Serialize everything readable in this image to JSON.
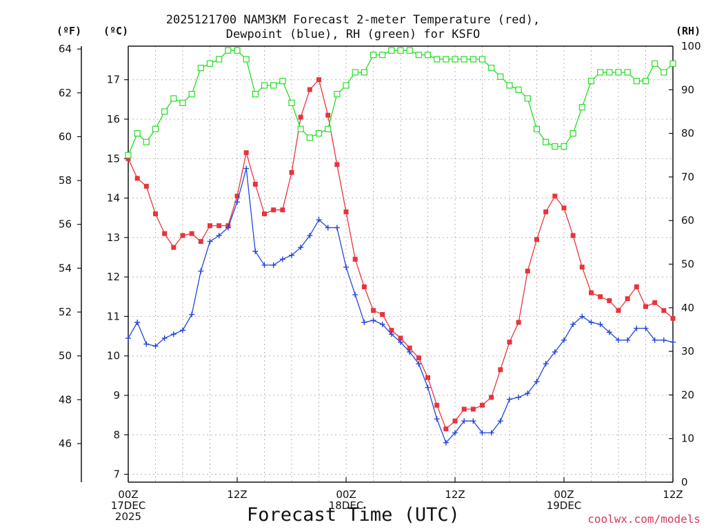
{
  "title_line1": "2025121700 NAM3KM Forecast 2-meter Temperature (red),",
  "title_line2": "Dewpoint (blue), RH (green) for KSFO",
  "units": {
    "f": "(ºF)",
    "c": "(ºC)",
    "rh": "(RH)"
  },
  "x_axis_label": "Forecast Time (UTC)",
  "credit": "coolwx.com/models",
  "colors": {
    "temp": "#e8343c",
    "dew": "#2244dd",
    "rh": "#22dd22",
    "grid": "#b4b4b4"
  },
  "chart_data": {
    "type": "line",
    "title": "2025121700 NAM3KM Forecast 2-meter Temperature (red), Dewpoint (blue), RH (green) for KSFO",
    "xlabel": "Forecast Time (UTC)",
    "x_unit": "forecast hour",
    "xlim": [
      0,
      60
    ],
    "x_ticks": [
      {
        "hour": 0,
        "lines": [
          "00Z",
          "17DEC",
          "2025"
        ]
      },
      {
        "hour": 12,
        "lines": [
          "12Z"
        ]
      },
      {
        "hour": 24,
        "lines": [
          "00Z",
          "18DEC"
        ]
      },
      {
        "hour": 36,
        "lines": [
          "12Z"
        ]
      },
      {
        "hour": 48,
        "lines": [
          "00Z",
          "19DEC"
        ]
      },
      {
        "hour": 60,
        "lines": [
          "12Z"
        ]
      }
    ],
    "y_left_celsius": {
      "label": "(ºC)",
      "lim": [
        6.8,
        17.85
      ],
      "ticks": [
        7,
        8,
        9,
        10,
        11,
        12,
        13,
        14,
        15,
        16,
        17
      ]
    },
    "y_left_fahrenheit": {
      "label": "(ºF)",
      "lim": [
        44.24,
        64.13
      ],
      "ticks": [
        46,
        48,
        50,
        52,
        54,
        56,
        58,
        60,
        62,
        64
      ]
    },
    "y_right_rh": {
      "label": "(RH)",
      "lim": [
        0,
        100
      ],
      "ticks": [
        0,
        10,
        20,
        30,
        40,
        50,
        60,
        70,
        80,
        90,
        100
      ]
    },
    "x_hours": [
      0,
      1,
      2,
      3,
      4,
      5,
      6,
      7,
      8,
      9,
      10,
      11,
      12,
      13,
      14,
      15,
      16,
      17,
      18,
      19,
      20,
      21,
      22,
      23,
      24,
      25,
      26,
      27,
      28,
      29,
      30,
      31,
      32,
      33,
      34,
      35,
      36,
      37,
      38,
      39,
      40,
      41,
      42,
      43,
      44,
      45,
      46,
      47,
      48,
      49,
      50,
      51,
      52,
      53,
      54,
      55,
      56,
      57,
      58,
      59,
      60
    ],
    "series": [
      {
        "name": "Temperature",
        "unit": "C",
        "color": "#e8343c",
        "marker": "square",
        "values": [
          15.0,
          14.5,
          14.3,
          13.6,
          13.1,
          12.75,
          13.05,
          13.1,
          12.9,
          13.3,
          13.3,
          13.3,
          14.05,
          15.15,
          14.35,
          13.6,
          13.7,
          13.7,
          14.65,
          16.05,
          16.75,
          17.0,
          16.1,
          14.85,
          13.65,
          12.45,
          11.75,
          11.15,
          11.05,
          10.65,
          10.45,
          10.2,
          9.95,
          9.45,
          8.75,
          8.15,
          8.35,
          8.65,
          8.65,
          8.75,
          8.95,
          9.65,
          10.35,
          10.85,
          12.15,
          12.95,
          13.65,
          14.05,
          13.75,
          13.05,
          12.25,
          11.6,
          11.5,
          11.4,
          11.15,
          11.45,
          11.75,
          11.25,
          11.35,
          11.15,
          10.95
        ]
      },
      {
        "name": "Dewpoint",
        "unit": "C",
        "color": "#2244dd",
        "marker": "plus",
        "values": [
          10.45,
          10.85,
          10.3,
          10.25,
          10.45,
          10.55,
          10.65,
          11.05,
          12.15,
          12.9,
          13.05,
          13.25,
          13.9,
          14.75,
          12.65,
          12.3,
          12.3,
          12.45,
          12.55,
          12.75,
          13.05,
          13.45,
          13.25,
          13.25,
          12.25,
          11.55,
          10.85,
          10.9,
          10.8,
          10.55,
          10.35,
          10.1,
          9.8,
          9.2,
          8.4,
          7.8,
          8.05,
          8.35,
          8.35,
          8.05,
          8.05,
          8.35,
          8.9,
          8.95,
          9.05,
          9.35,
          9.8,
          10.1,
          10.4,
          10.8,
          11.0,
          10.85,
          10.8,
          10.6,
          10.4,
          10.4,
          10.7,
          10.7,
          10.4,
          10.4,
          10.35
        ]
      },
      {
        "name": "RH",
        "unit": "%",
        "color": "#22dd22",
        "marker": "open-square",
        "values": [
          75,
          80,
          78,
          81,
          85,
          88,
          87,
          89,
          95,
          96,
          97,
          99,
          99,
          97,
          89,
          91,
          91,
          92,
          87,
          81,
          79,
          80,
          81,
          89,
          91,
          94,
          94,
          98,
          98,
          99,
          99,
          99,
          98,
          98,
          97,
          97,
          97,
          97,
          97,
          97,
          95,
          93,
          91,
          90,
          88,
          81,
          78,
          77,
          77,
          80,
          86,
          92,
          94,
          94,
          94,
          94,
          92,
          92,
          96,
          94,
          96
        ]
      }
    ]
  }
}
